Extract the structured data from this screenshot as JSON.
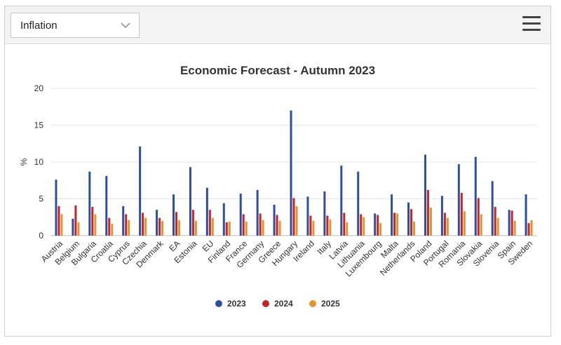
{
  "toolbar": {
    "selected_indicator": "Inflation",
    "dropdown_icon": "chevron-down-icon",
    "menu_icon": "hamburger-menu-icon"
  },
  "chart_data": {
    "type": "bar",
    "title": "Economic Forecast - Autumn 2023",
    "ylabel": "%",
    "xlabel": "",
    "ylim": [
      0,
      20
    ],
    "yticks": [
      0,
      5,
      10,
      15,
      20
    ],
    "grid": true,
    "legend_position": "bottom-center",
    "categories": [
      "Austria",
      "Belgium",
      "Bulgaria",
      "Croatia",
      "Cyprus",
      "Czechia",
      "Denmark",
      "EA",
      "Estonia",
      "EU",
      "Finland",
      "France",
      "Germany",
      "Greece",
      "Hungary",
      "Ireland",
      "Italy",
      "Latvia",
      "Lithuania",
      "Luxembourg",
      "Malta",
      "Netherlands",
      "Poland",
      "Portugal",
      "Romania",
      "Slovakia",
      "Slovenia",
      "Spain",
      "Sweden"
    ],
    "series": [
      {
        "name": "2023",
        "color": "#2e4f9e",
        "values": [
          7.6,
          2.3,
          8.7,
          8.1,
          4.0,
          12.1,
          3.5,
          5.6,
          9.3,
          6.5,
          4.4,
          5.7,
          6.2,
          4.2,
          17.0,
          5.3,
          6.0,
          9.5,
          8.7,
          3.0,
          5.6,
          4.5,
          11.0,
          5.4,
          9.7,
          10.7,
          7.4,
          3.5,
          5.6
        ]
      },
      {
        "name": "2024",
        "color": "#c0272d",
        "values": [
          4.0,
          4.1,
          3.9,
          2.4,
          2.9,
          3.1,
          2.4,
          3.2,
          3.5,
          3.5,
          1.8,
          2.9,
          3.0,
          2.8,
          5.1,
          2.7,
          2.7,
          3.1,
          2.9,
          2.8,
          3.1,
          3.6,
          6.2,
          3.1,
          5.8,
          5.1,
          3.9,
          3.4,
          1.7
        ]
      },
      {
        "name": "2025",
        "color": "#e3932f",
        "values": [
          2.9,
          1.8,
          2.9,
          1.6,
          2.1,
          2.4,
          2.0,
          2.1,
          2.0,
          2.4,
          1.9,
          1.9,
          2.1,
          2.0,
          4.0,
          2.0,
          2.2,
          1.8,
          2.5,
          1.7,
          3.0,
          1.9,
          3.8,
          2.4,
          3.3,
          2.9,
          2.4,
          2.0,
          2.1
        ]
      }
    ]
  }
}
